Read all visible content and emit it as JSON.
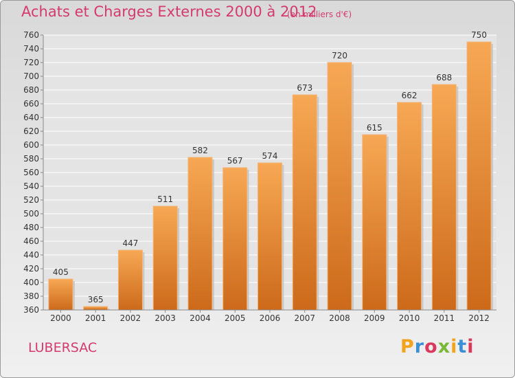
{
  "chart_data": {
    "type": "bar",
    "title": "Achats et Charges Externes 2000 à 2012",
    "unit": "(en milliers d'€)",
    "categories": [
      "2000",
      "2001",
      "2002",
      "2003",
      "2004",
      "2005",
      "2006",
      "2007",
      "2008",
      "2009",
      "2010",
      "2011",
      "2012"
    ],
    "values": [
      405,
      365,
      447,
      511,
      582,
      567,
      574,
      673,
      720,
      615,
      662,
      688,
      750
    ],
    "ylim": [
      360,
      760
    ],
    "yticks": [
      360,
      380,
      400,
      420,
      440,
      460,
      480,
      500,
      520,
      540,
      560,
      580,
      600,
      620,
      640,
      660,
      680,
      700,
      720,
      740,
      760
    ],
    "grid": true,
    "colors": {
      "bar_light": "#f7a854",
      "bar_dark": "#cc6a1a",
      "title": "#d43a6e"
    }
  },
  "footer": {
    "commune": "LUBERSAC",
    "logo_letters": [
      "P",
      "r",
      "o",
      "x",
      "i",
      "t",
      "i"
    ],
    "logo_colors": [
      "#f2a31b",
      "#3a8fd6",
      "#d8395c",
      "#79b836",
      "#f2a31b",
      "#3a8fd6",
      "#d8395c"
    ]
  }
}
